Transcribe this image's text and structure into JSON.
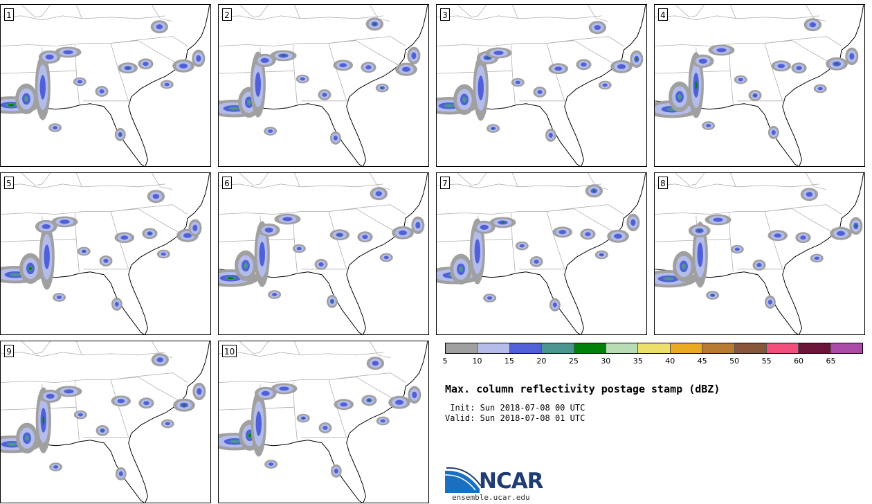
{
  "panels": [
    {
      "label": "1"
    },
    {
      "label": "2"
    },
    {
      "label": "3"
    },
    {
      "label": "4"
    },
    {
      "label": "5"
    },
    {
      "label": "6"
    },
    {
      "label": "7"
    },
    {
      "label": "8"
    },
    {
      "label": "9"
    },
    {
      "label": "10"
    }
  ],
  "colorbar": {
    "colors": [
      "#a0a0a0",
      "#b4bcea",
      "#5060d8",
      "#4b9690",
      "#00820a",
      "#b8dcb4",
      "#ede06a",
      "#eaab22",
      "#b67a30",
      "#88563a",
      "#ef4f7a",
      "#6a1539",
      "#ab4ba8"
    ],
    "ticks": [
      "5",
      "10",
      "15",
      "20",
      "25",
      "30",
      "35",
      "40",
      "45",
      "50",
      "55",
      "60",
      "65"
    ]
  },
  "info": {
    "title": "Max. column reflectivity postage stamp (dBZ)",
    "init": " Init: Sun 2018-07-08 00 UTC",
    "valid": "Valid: Sun 2018-07-08 01 UTC"
  },
  "logo": {
    "name": "NCAR",
    "url": "ensemble.ucar.edu",
    "blue": "#1a6fc0",
    "navy": "#1f3c73"
  }
}
